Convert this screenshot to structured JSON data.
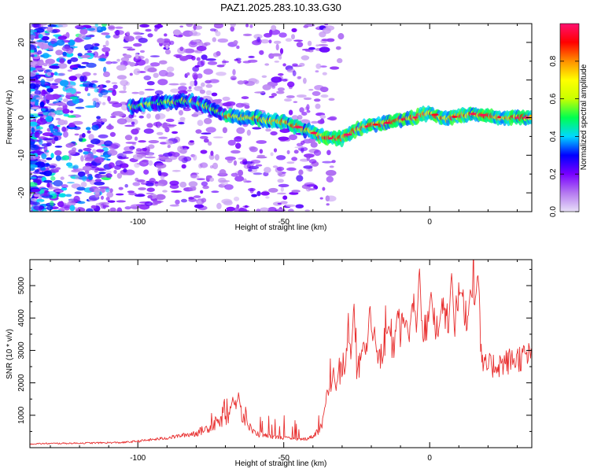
{
  "title": "PAZ1.2025.283.10.33.G30",
  "chart_data": [
    {
      "type": "heatmap",
      "name": "spectrogram",
      "xlabel": "Height of straight line (km)",
      "ylabel": "Frequency (Hz)",
      "xlim": [
        -137,
        35
      ],
      "ylim": [
        -25,
        25
      ],
      "xticks": [
        -100,
        -50,
        0
      ],
      "yticks": [
        -20,
        -10,
        0,
        10,
        20
      ],
      "ridge": {
        "x": [
          -100,
          -95,
          -90,
          -85,
          -80,
          -75,
          -70,
          -65,
          -60,
          -55,
          -50,
          -45,
          -40,
          -35,
          -30,
          -25,
          -20,
          -15,
          -10,
          -5,
          0,
          5,
          10,
          15,
          20,
          25,
          30,
          35
        ],
        "y": [
          3,
          4,
          4,
          4.5,
          4,
          2.5,
          0.5,
          0,
          0,
          -1,
          -1,
          -2.5,
          -4,
          -5.5,
          -5.5,
          -3,
          -2,
          -1.5,
          -0.5,
          0,
          1.5,
          -0.5,
          0.5,
          1,
          0.5,
          0,
          0,
          0
        ]
      },
      "colorbar": {
        "label": "Normalized spectral amplitude",
        "ticks": [
          0.0,
          0.2,
          0.4,
          0.6,
          0.8
        ],
        "range": [
          0,
          1
        ],
        "colors": [
          "#e8e0f8",
          "#b478f0",
          "#7800ff",
          "#0000ff",
          "#00d8ff",
          "#00ff50",
          "#c8ff00",
          "#ffff00",
          "#ff9000",
          "#ff0000",
          "#ff1070"
        ]
      }
    },
    {
      "type": "line",
      "name": "snr",
      "xlabel": "Height of straight line (km)",
      "ylabel": "SNR (10 * v/v)",
      "xlim": [
        -137,
        35
      ],
      "ylim": [
        0,
        5800
      ],
      "xticks": [
        -100,
        -50,
        0
      ],
      "yticks": [
        1000,
        2000,
        3000,
        4000,
        5000
      ],
      "color": "#e83030",
      "envelope": {
        "x": [
          -137,
          -120,
          -105,
          -100,
          -90,
          -80,
          -75,
          -70,
          -67,
          -65,
          -62,
          -60,
          -55,
          -50,
          -45,
          -42,
          -40,
          -37,
          -35,
          -33,
          -30,
          -27,
          -25,
          -22,
          -20,
          -17,
          -15,
          -12,
          -10,
          -7,
          -5,
          -2,
          0,
          3,
          5,
          8,
          10,
          13,
          15,
          17,
          18,
          20,
          25,
          30,
          35
        ],
        "y": [
          120,
          140,
          160,
          200,
          300,
          450,
          650,
          900,
          1200,
          1150,
          650,
          450,
          350,
          300,
          250,
          280,
          350,
          650,
          1900,
          1500,
          2600,
          2900,
          2300,
          3000,
          3100,
          2700,
          3400,
          3200,
          3700,
          3300,
          3900,
          3300,
          4000,
          3500,
          4200,
          3700,
          4500,
          3800,
          4600,
          4300,
          2500,
          2500,
          2600,
          2750,
          2850
        ]
      },
      "spikes": [
        {
          "x": -67.5,
          "y": 1580
        },
        {
          "x": -65.5,
          "y": 1700
        },
        {
          "x": -33,
          "y": 2550
        },
        {
          "x": -26,
          "y": 4700
        },
        {
          "x": -23,
          "y": 3000
        },
        {
          "x": -20.5,
          "y": 4600
        },
        {
          "x": -19,
          "y": 3700
        },
        {
          "x": -14,
          "y": 3800
        },
        {
          "x": -11,
          "y": 4300
        },
        {
          "x": -8,
          "y": 4000
        },
        {
          "x": -6,
          "y": 4600
        },
        {
          "x": -3.5,
          "y": 5800
        },
        {
          "x": 0.5,
          "y": 4900
        },
        {
          "x": 4,
          "y": 4300
        },
        {
          "x": 7.5,
          "y": 5700
        },
        {
          "x": 11,
          "y": 4900
        },
        {
          "x": 14,
          "y": 5000
        },
        {
          "x": 16.5,
          "y": 5500
        }
      ]
    }
  ]
}
